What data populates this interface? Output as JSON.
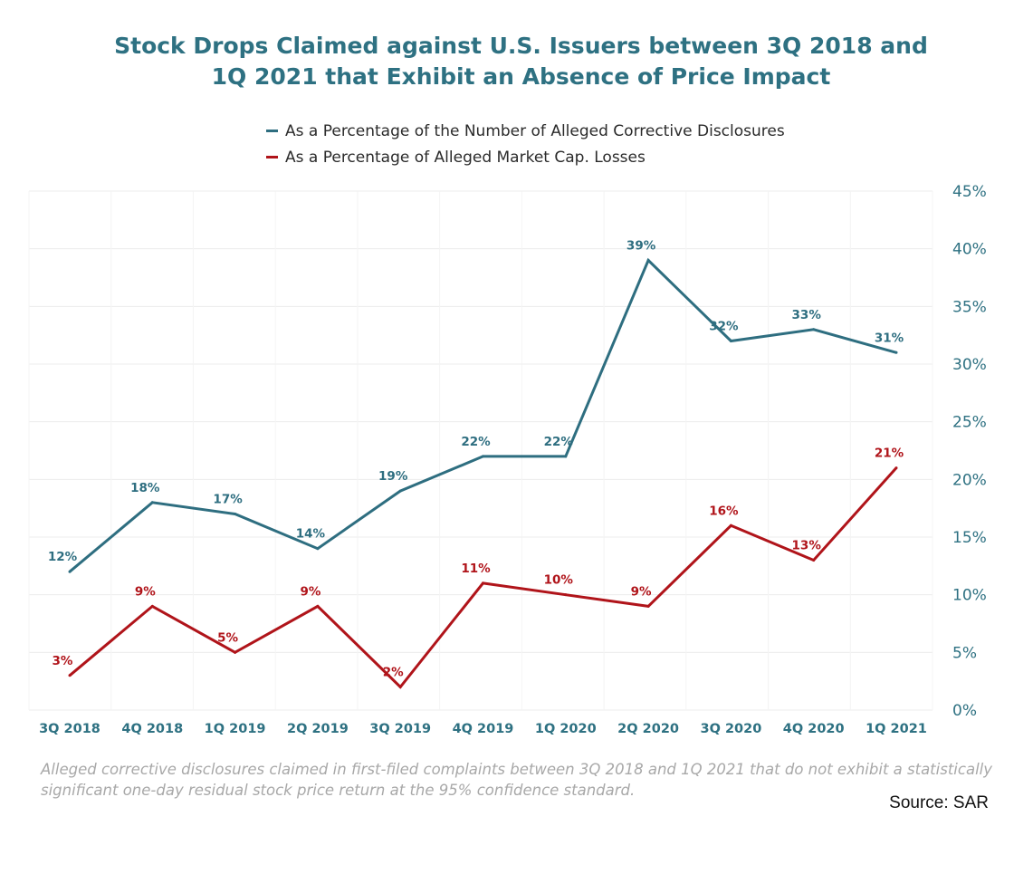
{
  "chart_data": {
    "type": "line",
    "title": "Stock Drops Claimed against U.S. Issuers between 3Q 2018 and 1Q 2021 that Exhibit an Absence of Price Impact",
    "title_lines": [
      "Stock Drops Claimed against U.S. Issuers between 3Q 2018 and",
      "1Q 2021 that Exhibit an Absence of Price Impact"
    ],
    "xlabel": "",
    "ylabel": "",
    "categories": [
      "3Q 2018",
      "4Q 2018",
      "1Q 2019",
      "2Q 2019",
      "3Q 2019",
      "4Q 2019",
      "1Q 2020",
      "2Q 2020",
      "3Q 2020",
      "4Q 2020",
      "1Q 2021"
    ],
    "series": [
      {
        "name": "As a Percentage of the Number of Alleged Corrective Disclosures",
        "color": "#2e6e80",
        "values": [
          12,
          18,
          17,
          14,
          19,
          22,
          22,
          39,
          32,
          33,
          31
        ],
        "labels": [
          "12%",
          "18%",
          "17%",
          "14%",
          "19%",
          "22%",
          "22%",
          "39%",
          "32%",
          "33%",
          "31%"
        ]
      },
      {
        "name": "As a Percentage of Alleged Market Cap. Losses",
        "color": "#b0141a",
        "values": [
          3,
          9,
          5,
          9,
          2,
          11,
          10,
          9,
          16,
          13,
          21
        ],
        "labels": [
          "3%",
          "9%",
          "5%",
          "9%",
          "2%",
          "11%",
          "10%",
          "9%",
          "16%",
          "13%",
          "21%"
        ]
      }
    ],
    "ylim": [
      0,
      45
    ],
    "y_ticks": [
      0,
      5,
      10,
      15,
      20,
      25,
      30,
      35,
      40,
      45
    ],
    "y_tick_labels": [
      "0%",
      "5%",
      "10%",
      "15%",
      "20%",
      "25%",
      "30%",
      "35%",
      "40%",
      "45%"
    ],
    "y_axis_side": "right",
    "grid": true,
    "legend_position": "top-center",
    "axis_label_color": "#2e7182"
  },
  "footnote": "Alleged corrective disclosures claimed in first-filed complaints between 3Q 2018 and 1Q 2021 that do not exhibit a statistically significant one-day residual stock price return at the 95% confidence standard.",
  "source": "Source: SAR"
}
